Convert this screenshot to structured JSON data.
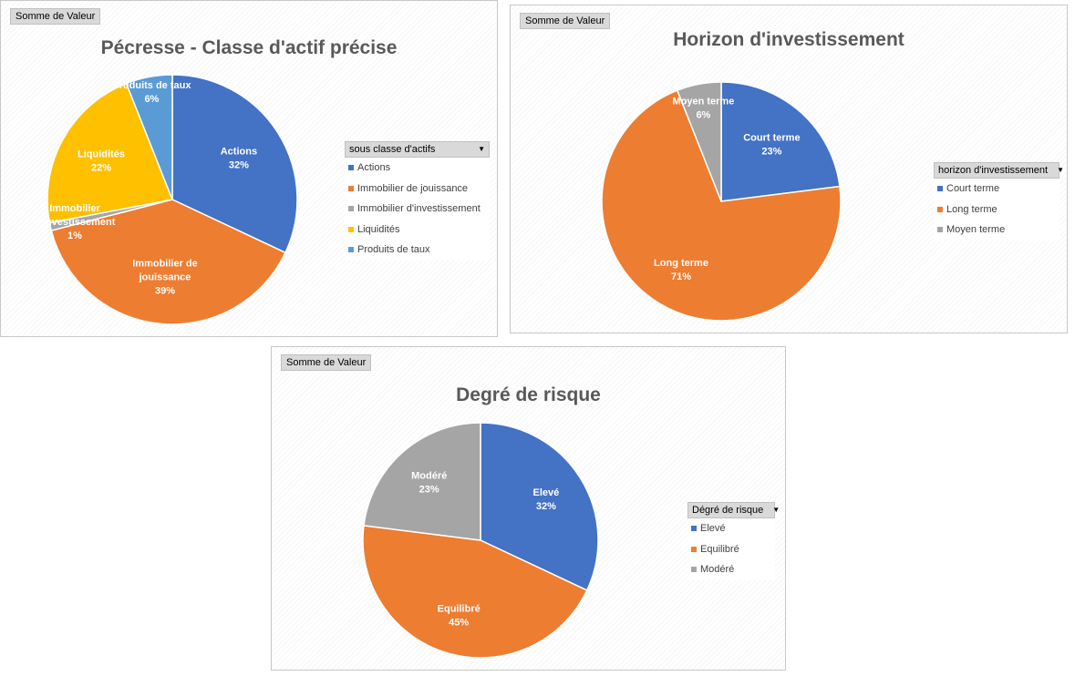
{
  "chart_data": [
    {
      "type": "pie",
      "title": "Pécresse - Classe d'actif précise",
      "field_button": "Somme de Valeur",
      "legend_title": "sous classe d'actifs",
      "series": [
        {
          "name": "",
          "slices": [
            {
              "category": "Actions",
              "label_lines": [
                "Actions"
              ],
              "value": 32,
              "percent_label": "32%",
              "color": "#4472C4"
            },
            {
              "category": "Immobilier de jouissance",
              "label_lines": [
                "Immobilier de",
                "jouissance"
              ],
              "value": 39,
              "percent_label": "39%",
              "color": "#ED7D31"
            },
            {
              "category": "Immobilier d'investissement",
              "label_lines": [
                "Immobilier",
                "d'investissement"
              ],
              "value": 1,
              "percent_label": "1%",
              "color": "#A5A5A5"
            },
            {
              "category": "Liquidités",
              "label_lines": [
                "Liquidités"
              ],
              "value": 22,
              "percent_label": "22%",
              "color": "#FFC000"
            },
            {
              "category": "Produits de taux",
              "label_lines": [
                "Produits de taux"
              ],
              "value": 6,
              "percent_label": "6%",
              "color": "#5B9BD5"
            }
          ]
        }
      ]
    },
    {
      "type": "pie",
      "title": "Horizon d'investissement",
      "field_button": "Somme de Valeur",
      "legend_title": "horizon d'investissement",
      "series": [
        {
          "name": "",
          "slices": [
            {
              "category": "Court terme",
              "label_lines": [
                "Court terme"
              ],
              "value": 23,
              "percent_label": "23%",
              "color": "#4472C4"
            },
            {
              "category": "Long terme",
              "label_lines": [
                "Long terme"
              ],
              "value": 71,
              "percent_label": "71%",
              "color": "#ED7D31"
            },
            {
              "category": "Moyen terme",
              "label_lines": [
                "Moyen terme"
              ],
              "value": 6,
              "percent_label": "6%",
              "color": "#A5A5A5"
            }
          ]
        }
      ]
    },
    {
      "type": "pie",
      "title": "Degré de risque",
      "field_button": "Somme de Valeur",
      "legend_title": "Dégré de risque",
      "series": [
        {
          "name": "",
          "slices": [
            {
              "category": "Elevé",
              "label_lines": [
                "Elevé"
              ],
              "value": 32,
              "percent_label": "32%",
              "color": "#4472C4"
            },
            {
              "category": "Equilibré",
              "label_lines": [
                "Equilibré"
              ],
              "value": 45,
              "percent_label": "45%",
              "color": "#ED7D31"
            },
            {
              "category": "Modéré",
              "label_lines": [
                "Modéré"
              ],
              "value": 23,
              "percent_label": "23%",
              "color": "#A5A5A5"
            }
          ]
        }
      ]
    }
  ]
}
